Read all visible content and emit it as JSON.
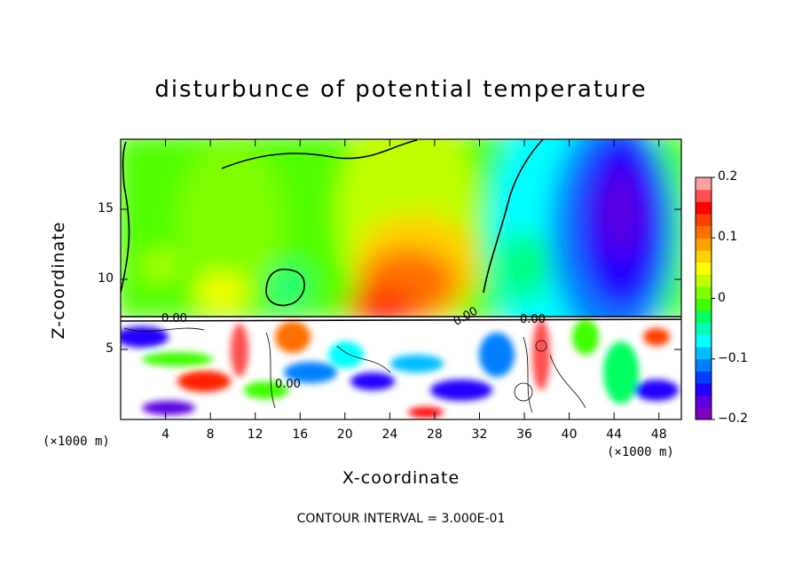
{
  "chart_data": {
    "type": "heatmap",
    "title": "disturbunce of potential temperature",
    "xlabel": "X-coordinate",
    "ylabel": "Z-coordinate",
    "x_unit": "(×1000 m)",
    "y_unit": "(×1000 m)",
    "x_ticks": [
      4,
      8,
      12,
      16,
      20,
      24,
      28,
      32,
      36,
      40,
      44,
      48
    ],
    "y_ticks": [
      5,
      10,
      15
    ],
    "xlim": [
      0,
      50
    ],
    "ylim": [
      0,
      20
    ],
    "contour_labels": [
      "0.00",
      "0.00",
      "0.00",
      "0.00"
    ],
    "contour_interval_text": "CONTOUR INTERVAL = 3.000E-01",
    "colorbar": {
      "range": [
        -0.2,
        0.2
      ],
      "tick_labels": [
        "0.2",
        "0.1",
        "0",
        "−0.1",
        "−0.2"
      ],
      "tick_values": [
        0.2,
        0.1,
        0,
        -0.1,
        -0.2
      ],
      "colors": [
        "#8000c0",
        "#5a00e0",
        "#2000ff",
        "#0040ff",
        "#0080ff",
        "#00bfff",
        "#00ffff",
        "#00ffb0",
        "#00ff60",
        "#40ff00",
        "#80ff00",
        "#c0ff00",
        "#ffff00",
        "#ffd000",
        "#ffa000",
        "#ff7000",
        "#ff4000",
        "#ff0000",
        "#ff5050",
        "#ffa0a0"
      ]
    }
  }
}
